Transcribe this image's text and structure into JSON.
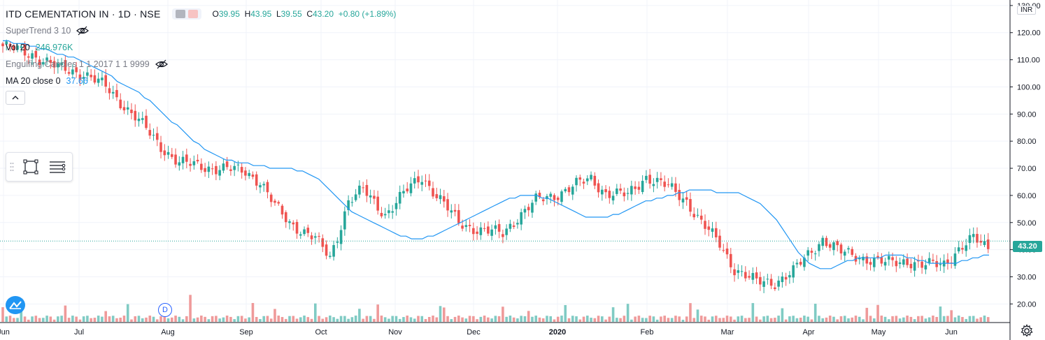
{
  "legend": {
    "title": "ITD CEMENTATION IN · 1D · NSE",
    "o_label": "O",
    "o": "39.95",
    "h_label": "H",
    "h": "43.95",
    "l_label": "L",
    "l": "39.55",
    "c_label": "C",
    "c": "43.20",
    "chg": "+0.80 (+1.89%)",
    "indicators": {
      "supertrend": "SuperTrend 3 10",
      "vol_label": "Vol 20",
      "vol_value": "246.976K",
      "engulfing": "Engulfing Candles 1 1 2017 1 1 9999",
      "ma_label": "MA 20 close 0",
      "ma_value": "37.66"
    }
  },
  "axis": {
    "unit": "INR",
    "last_price": "43.20",
    "event_marker": "D"
  },
  "colors": {
    "up": "#26a69a",
    "down": "#ef5350",
    "up_volume": "#80cbc4",
    "down_volume": "#ef9a9a",
    "ma": "#2196f3",
    "grid": "#f0f3fa"
  },
  "chart_data": {
    "type": "candlestick",
    "y_ticks": [
      "20.00",
      "30.00",
      "40.00",
      "50.00",
      "60.00",
      "70.00",
      "80.00",
      "90.00",
      "100.00",
      "110.00",
      "120.00",
      "130.00"
    ],
    "x_ticks": [
      "Jun",
      "Jul",
      "Aug",
      "Sep",
      "Oct",
      "Nov",
      "Dec",
      "2020",
      "Feb",
      "Mar",
      "Apr",
      "May",
      "Jun"
    ],
    "ylim": [
      17,
      131
    ],
    "last_close": 43.2,
    "series": [
      {
        "name": "MA 20 close 0",
        "values": [
          117,
          117,
          116,
          116,
          116,
          115,
          115,
          114,
          114,
          113,
          112,
          112,
          111,
          111,
          110,
          109,
          108,
          107,
          106,
          105,
          104,
          102,
          101,
          100,
          99,
          98,
          96,
          95,
          93,
          91,
          89,
          87,
          86,
          84,
          82,
          80,
          79,
          77,
          76,
          75,
          74,
          73,
          73,
          72,
          72,
          72,
          71,
          71,
          71,
          70,
          70,
          70,
          70,
          70,
          69,
          69,
          68,
          67,
          66,
          64,
          62,
          60,
          58,
          56,
          54,
          53,
          52,
          51,
          50,
          49,
          48,
          47,
          46,
          45,
          45,
          44,
          44,
          44,
          45,
          45,
          46,
          47,
          48,
          49,
          50,
          51,
          52,
          53,
          54,
          55,
          56,
          57,
          58,
          59,
          59,
          60,
          60,
          60,
          60,
          59,
          59,
          58,
          57,
          56,
          55,
          54,
          53,
          52,
          52,
          52,
          52,
          52,
          53,
          53,
          54,
          55,
          56,
          57,
          58,
          58,
          59,
          59,
          60,
          60,
          61,
          61,
          62,
          62,
          62,
          62,
          62,
          61,
          61,
          61,
          61,
          61,
          60,
          59,
          58,
          57,
          55,
          53,
          51,
          48,
          45,
          42,
          39,
          37,
          35,
          34,
          33,
          33,
          33,
          34,
          35,
          36,
          36,
          37,
          37,
          37,
          37,
          37,
          38,
          38,
          38,
          38,
          37,
          37,
          36,
          36,
          35,
          35,
          35,
          35,
          35,
          35,
          36,
          36,
          37,
          37,
          38,
          38
        ]
      }
    ]
  }
}
